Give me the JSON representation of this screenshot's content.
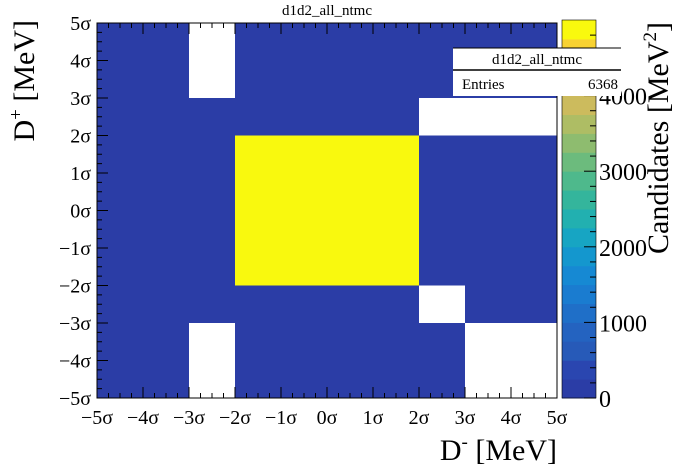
{
  "chart_data": {
    "type": "heatmap",
    "title": "d1d2_all_ntmc",
    "xlabel": "D",
    "xlabel_sup": "-",
    "xlabel_unit": " [MeV]",
    "ylabel": "D",
    "ylabel_sup": "+",
    "ylabel_unit": " [MeV]",
    "zlabel": "Candidates [MeV",
    "zlabel_sup": "2",
    "zlabel_close": "]",
    "x_bin_edges": [
      -5,
      -3,
      -2,
      2,
      3,
      5
    ],
    "y_bin_edges": [
      -5,
      -3,
      -2,
      2,
      3,
      5
    ],
    "x_tick_labels": [
      "−5σ",
      "−4σ",
      "−3σ",
      "−2σ",
      "−1σ",
      "0σ",
      "1σ",
      "2σ",
      "3σ",
      "4σ",
      "5σ"
    ],
    "y_tick_labels": [
      "−5σ",
      "−4σ",
      "−3σ",
      "−2σ",
      "−1σ",
      "0σ",
      "1σ",
      "2σ",
      "3σ",
      "4σ",
      "5σ"
    ],
    "z_tick_labels": [
      "0",
      "1000",
      "2000",
      "3000",
      "4000"
    ],
    "zlim": [
      0,
      5000
    ],
    "values_row_major_top_to_bottom": [
      [
        20,
        0,
        20,
        20,
        20
      ],
      [
        20,
        20,
        20,
        0,
        0
      ],
      [
        20,
        20,
        5000,
        20,
        20
      ],
      [
        20,
        20,
        20,
        0,
        20
      ],
      [
        20,
        0,
        20,
        20,
        0
      ]
    ],
    "stats_box": {
      "name": "d1d2_all_ntmc",
      "entries_label": "Entries",
      "entries_value": "6368"
    },
    "colors": {
      "low": "#2a40a8",
      "high": "#f9f90e"
    },
    "palette": [
      "#2b3da6",
      "#2a46b0",
      "#275ab8",
      "#2463c0",
      "#1f6fc8",
      "#1a7cd0",
      "#1689d3",
      "#1497ce",
      "#17a5c3",
      "#22b0b0",
      "#34b59c",
      "#4eb98c",
      "#6cbb7d",
      "#8ebc6f",
      "#aebd64",
      "#ccbb5d",
      "#e2b650",
      "#f0be3f",
      "#f8d232",
      "#f9f90e"
    ]
  }
}
